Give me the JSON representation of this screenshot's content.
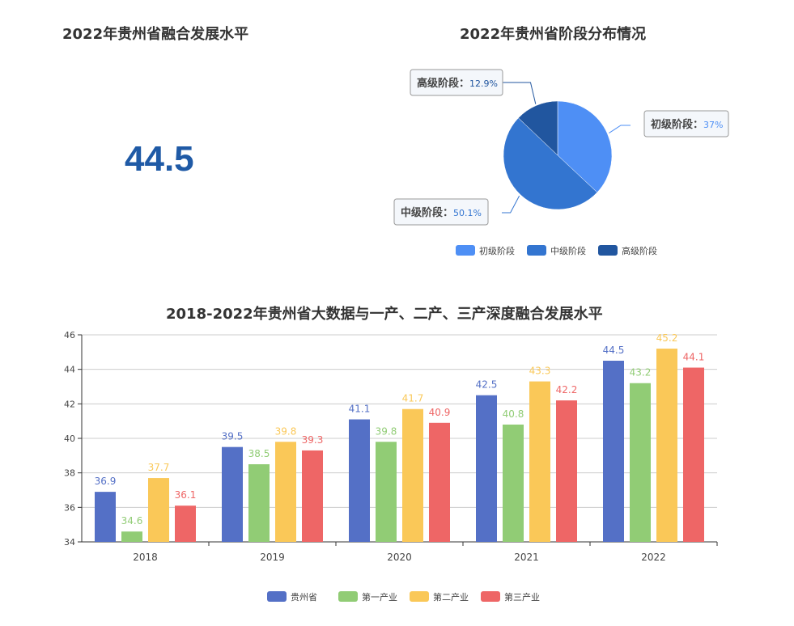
{
  "left_panel": {
    "title": "2022年贵州省融合发展水平",
    "value": "44.5"
  },
  "chart_data": [
    {
      "type": "pie",
      "title": "2022年贵州省阶段分布情况",
      "slices": [
        {
          "name": "初级阶段",
          "value": 37,
          "label": "37%",
          "color": "#4e8ff5"
        },
        {
          "name": "中级阶段",
          "value": 50.1,
          "label": "50.1%",
          "color": "#3375d0"
        },
        {
          "name": "高级阶段",
          "value": 12.9,
          "label": "12.9%",
          "color": "#21569f"
        }
      ],
      "legend": [
        "初级阶段",
        "中级阶段",
        "高级阶段"
      ],
      "legend_position": "bottom"
    },
    {
      "type": "bar",
      "title": "2018-2022年贵州省大数据与一产、二产、三产深度融合发展水平",
      "categories": [
        "2018",
        "2019",
        "2020",
        "2021",
        "2022"
      ],
      "series": [
        {
          "name": "贵州省",
          "color": "#5470c6",
          "values": [
            36.9,
            39.5,
            41.1,
            42.5,
            44.5
          ]
        },
        {
          "name": "第一产业",
          "color": "#91cc75",
          "values": [
            34.6,
            38.5,
            39.8,
            40.8,
            43.2
          ]
        },
        {
          "name": "第二产业",
          "color": "#fac858",
          "values": [
            37.7,
            39.8,
            41.7,
            43.3,
            45.2
          ]
        },
        {
          "name": "第三产业",
          "color": "#ee6666",
          "values": [
            36.1,
            39.3,
            40.9,
            42.2,
            44.1
          ]
        }
      ],
      "ylim": [
        34,
        46
      ],
      "yticks": [
        34,
        36,
        38,
        40,
        42,
        44,
        46
      ],
      "grid": true,
      "legend_position": "bottom"
    }
  ]
}
